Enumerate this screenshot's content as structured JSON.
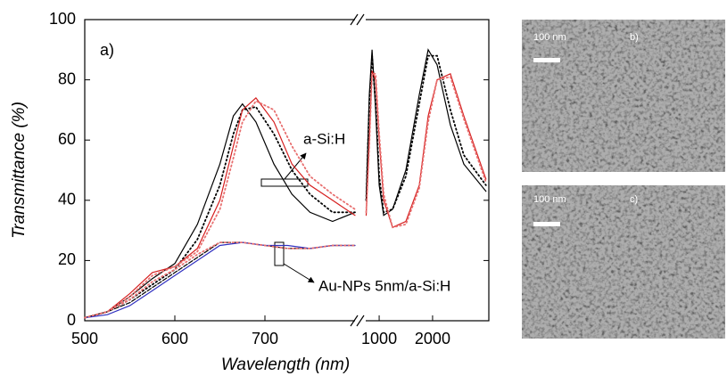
{
  "chart_data": {
    "type": "line",
    "panel_label": "a)",
    "xlabel": "Wavelength (nm)",
    "ylabel": "Transmittance (%)",
    "ylim": [
      0,
      100
    ],
    "yticks": [
      0,
      20,
      40,
      60,
      80,
      100
    ],
    "xbreak": [
      {
        "xlim": [
          500,
          800
        ],
        "xticks": [
          500,
          600,
          700
        ]
      },
      {
        "xlim": [
          840,
          4150
        ],
        "xticks": [
          1000,
          2000
        ],
        "log": true
      }
    ],
    "annotations": [
      "a-Si:H",
      "Au-NPs 5nm/a-Si:H"
    ],
    "series": [
      {
        "color": "#000000",
        "style": "solid",
        "x": [
          500,
          525,
          550,
          575,
          600,
          625,
          650,
          665,
          675,
          690,
          710,
          730,
          750,
          775,
          800,
          845,
          880,
          912,
          955,
          1000,
          1060,
          1190,
          1415,
          1683,
          1889,
          2120,
          2520,
          3000,
          4000
        ],
        "values": [
          1,
          3,
          8,
          14,
          19,
          32,
          52,
          68,
          72,
          66,
          52,
          42,
          36,
          33,
          36,
          40,
          75,
          90,
          70,
          45,
          35,
          37,
          50,
          75,
          90,
          85,
          65,
          52,
          43
        ]
      },
      {
        "color": "#000000",
        "style": "dotted",
        "x": [
          500,
          525,
          550,
          575,
          600,
          625,
          650,
          665,
          675,
          690,
          710,
          730,
          750,
          775,
          800,
          845,
          880,
          912,
          955,
          1000,
          1060,
          1190,
          1415,
          1683,
          1889,
          2120,
          2520,
          3000,
          4000
        ],
        "values": [
          1,
          3,
          7,
          12,
          17,
          27,
          45,
          62,
          70,
          71,
          62,
          50,
          42,
          36,
          36,
          40,
          72,
          88,
          72,
          48,
          36,
          37,
          48,
          72,
          88,
          88,
          70,
          55,
          45
        ]
      },
      {
        "color": "#d62020",
        "style": "solid",
        "x": [
          500,
          525,
          550,
          575,
          600,
          625,
          650,
          665,
          675,
          690,
          710,
          730,
          750,
          775,
          800,
          845,
          880,
          912,
          955,
          1000,
          1060,
          1190,
          1415,
          1683,
          1889,
          2120,
          2520,
          3000,
          4000
        ],
        "values": [
          1,
          3,
          9,
          16,
          18,
          24,
          40,
          58,
          70,
          74,
          66,
          52,
          45,
          40,
          35,
          35,
          60,
          83,
          80,
          60,
          40,
          31,
          33,
          45,
          68,
          80,
          82,
          68,
          47
        ]
      },
      {
        "color": "#e87070",
        "style": "dotted",
        "x": [
          500,
          525,
          550,
          575,
          600,
          625,
          650,
          665,
          675,
          690,
          710,
          730,
          750,
          775,
          800,
          845,
          880,
          912,
          955,
          1000,
          1060,
          1190,
          1415,
          1683,
          1889,
          2120,
          2520,
          3000,
          4000
        ],
        "values": [
          1,
          3,
          8,
          15,
          18,
          23,
          37,
          54,
          66,
          73,
          70,
          58,
          48,
          42,
          37,
          36,
          58,
          82,
          82,
          62,
          42,
          31,
          32,
          44,
          66,
          80,
          81,
          67,
          46
        ]
      },
      {
        "color": "#000000",
        "style": "dashed",
        "x": [
          500,
          525,
          550,
          575,
          600,
          625,
          650,
          675,
          700,
          725,
          750,
          775,
          800
        ],
        "values": [
          1,
          3,
          6,
          11,
          16,
          21,
          26,
          26,
          25,
          24,
          24,
          25,
          25
        ]
      },
      {
        "color": "#3030c0",
        "style": "solid",
        "x": [
          500,
          525,
          550,
          575,
          600,
          625,
          650,
          675,
          700,
          725,
          750,
          775,
          800
        ],
        "values": [
          1,
          2,
          5,
          10,
          15,
          20,
          25,
          26,
          25,
          25,
          24,
          25,
          25
        ]
      },
      {
        "color": "#e87070",
        "style": "dotted",
        "x": [
          500,
          525,
          550,
          575,
          600,
          625,
          650,
          675,
          700,
          725,
          750,
          775,
          800
        ],
        "values": [
          1,
          3,
          7,
          13,
          17,
          22,
          26,
          26,
          25,
          24,
          24,
          25,
          25
        ]
      }
    ]
  },
  "images": [
    {
      "scale_label": "100 nm",
      "label": "b)"
    },
    {
      "scale_label": "100 nm",
      "label": "c)"
    }
  ]
}
